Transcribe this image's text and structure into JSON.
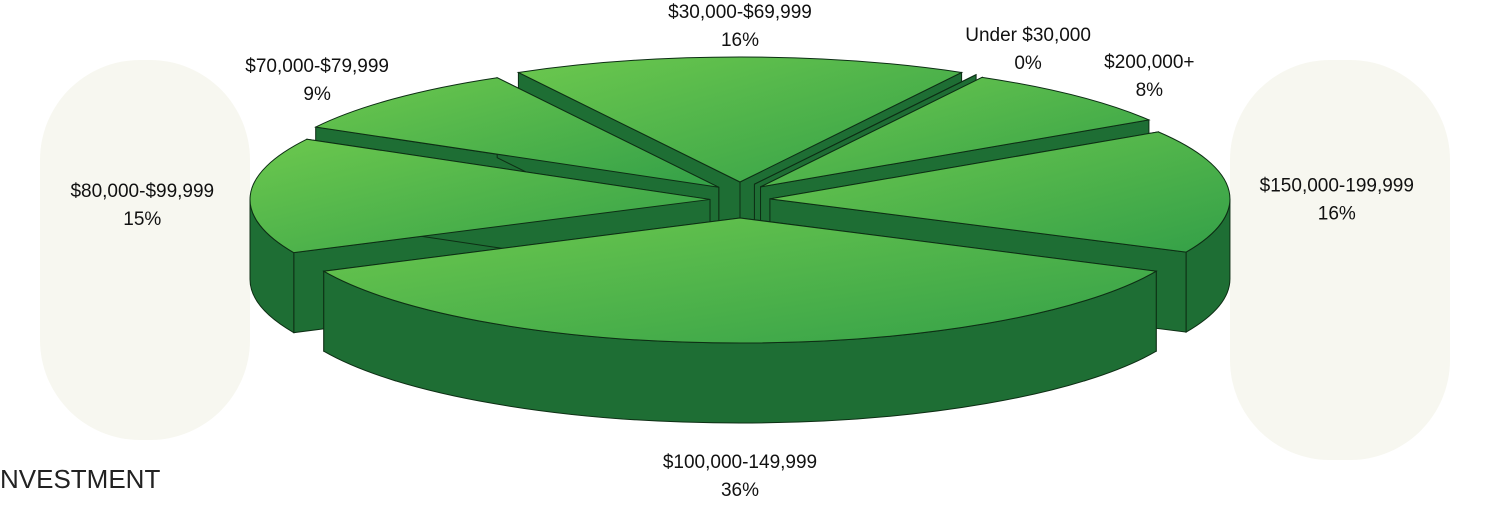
{
  "chart_data": {
    "type": "pie3d",
    "categories": [
      "Under $30,000",
      "$200,000+",
      "$150,000-199,999",
      "$100,000-149,999",
      "$80,000-$99,999",
      "$70,000-$79,999",
      "$30,000-$69,999"
    ],
    "values": [
      0,
      8,
      16,
      36,
      15,
      9,
      16
    ],
    "value_labels": [
      "0%",
      "8%",
      "16%",
      "36%",
      "15%",
      "9%",
      "16%"
    ],
    "color": "#4cb848",
    "side_color": "#1e6e34",
    "annotation": "NVESTMENT"
  }
}
